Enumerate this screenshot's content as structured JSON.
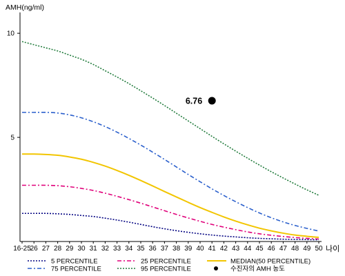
{
  "chart_data": {
    "type": "line",
    "title": "",
    "ylabel": "AMH(ng/ml)",
    "xlabel": "나이",
    "ylim": [
      0,
      11
    ],
    "yticks": [
      5,
      10
    ],
    "grid": false,
    "categories": [
      "16-25",
      "26",
      "27",
      "28",
      "29",
      "30",
      "31",
      "32",
      "33",
      "34",
      "35",
      "36",
      "37",
      "38",
      "39",
      "40",
      "41",
      "42",
      "43",
      "44",
      "45",
      "46",
      "47",
      "48",
      "49",
      "50"
    ],
    "series": [
      {
        "name": "5 PERCENTILE",
        "color": "#000080",
        "dash": "2,2",
        "values": [
          1.35,
          1.35,
          1.35,
          1.33,
          1.3,
          1.25,
          1.2,
          1.12,
          1.03,
          0.93,
          0.82,
          0.71,
          0.61,
          0.52,
          0.44,
          0.37,
          0.31,
          0.26,
          0.22,
          0.18,
          0.15,
          0.13,
          0.11,
          0.1,
          0.09,
          0.08
        ]
      },
      {
        "name": "25 PERCENTILE",
        "color": "#e0007a",
        "dash": "6,3,2,3",
        "values": [
          2.7,
          2.7,
          2.7,
          2.68,
          2.63,
          2.55,
          2.45,
          2.32,
          2.17,
          2.01,
          1.84,
          1.66,
          1.48,
          1.3,
          1.13,
          0.97,
          0.82,
          0.69,
          0.57,
          0.46,
          0.37,
          0.3,
          0.24,
          0.19,
          0.15,
          0.12
        ]
      },
      {
        "name": "MEDIAN(50 PERCENTILE)",
        "color": "#f2c500",
        "dash": "",
        "values": [
          4.2,
          4.2,
          4.18,
          4.14,
          4.06,
          3.95,
          3.8,
          3.62,
          3.41,
          3.18,
          2.93,
          2.67,
          2.4,
          2.14,
          1.88,
          1.63,
          1.4,
          1.18,
          0.98,
          0.8,
          0.64,
          0.51,
          0.4,
          0.31,
          0.25,
          0.2
        ]
      },
      {
        "name": "75 PERCENTILE",
        "color": "#2a5fcc",
        "dash": "6,3,2,3",
        "values": [
          6.2,
          6.2,
          6.2,
          6.17,
          6.08,
          5.94,
          5.75,
          5.52,
          5.25,
          4.95,
          4.63,
          4.29,
          3.94,
          3.58,
          3.22,
          2.87,
          2.53,
          2.21,
          1.91,
          1.63,
          1.37,
          1.14,
          0.94,
          0.77,
          0.63,
          0.5
        ]
      },
      {
        "name": "95 PERCENTILE",
        "color": "#1f7a3a",
        "dash": "2,2",
        "values": [
          9.6,
          9.45,
          9.3,
          9.15,
          8.95,
          8.75,
          8.5,
          8.2,
          7.9,
          7.58,
          7.24,
          6.89,
          6.53,
          6.16,
          5.79,
          5.42,
          5.05,
          4.69,
          4.34,
          4.0,
          3.67,
          3.35,
          3.05,
          2.76,
          2.48,
          2.22
        ]
      }
    ],
    "highlight_point": {
      "name": "수진자의 AMH 농도",
      "x": "41",
      "y": 6.76,
      "label": "6.76",
      "color": "#000000"
    },
    "legend_position": "bottom"
  }
}
